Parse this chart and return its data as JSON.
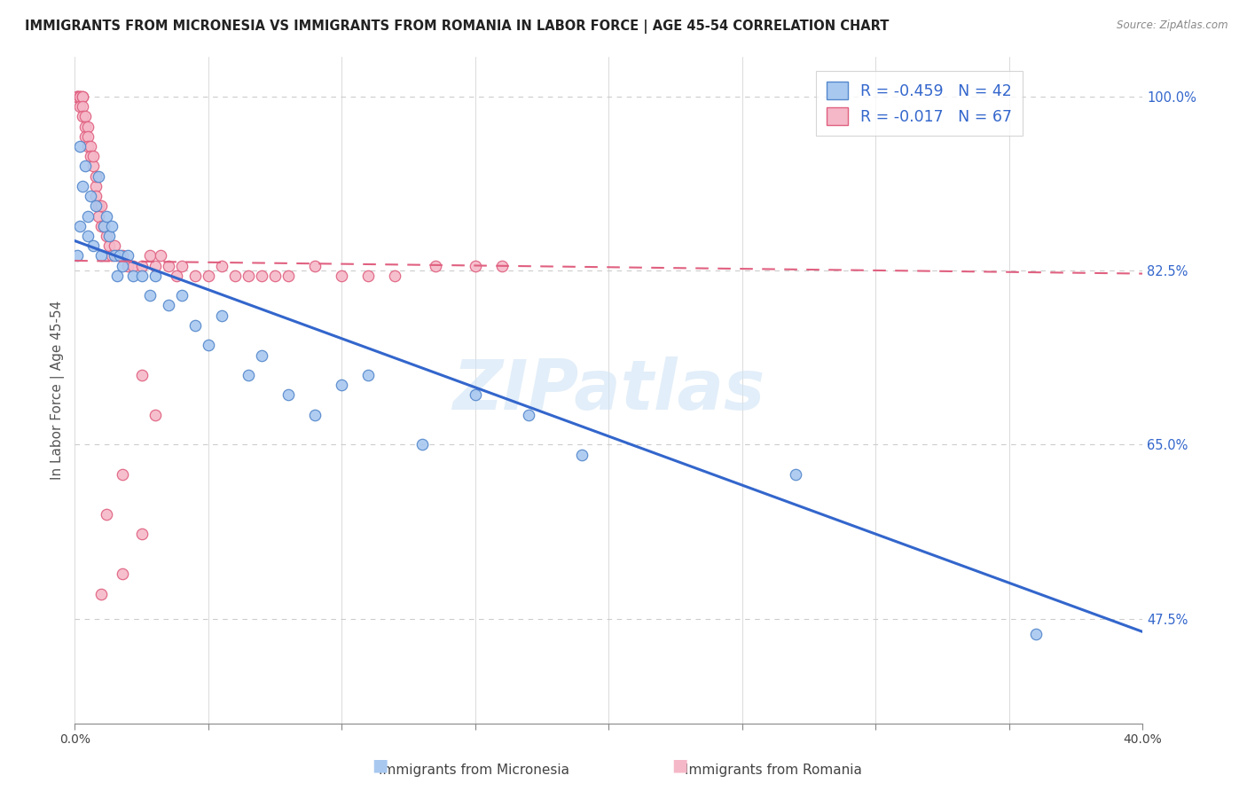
{
  "title": "IMMIGRANTS FROM MICRONESIA VS IMMIGRANTS FROM ROMANIA IN LABOR FORCE | AGE 45-54 CORRELATION CHART",
  "source": "Source: ZipAtlas.com",
  "ylabel": "In Labor Force | Age 45-54",
  "ytick_vals": [
    0.475,
    0.65,
    0.825,
    1.0
  ],
  "ytick_labels": [
    "47.5%",
    "65.0%",
    "82.5%",
    "100.0%"
  ],
  "xlim": [
    0.0,
    0.4
  ],
  "ylim": [
    0.37,
    1.04
  ],
  "micronesia_color": "#A8C8F0",
  "romania_color": "#F5B8C8",
  "micronesia_edge": "#5588CC",
  "romania_edge": "#E06080",
  "blue_line_color": "#3366CC",
  "pink_line_color": "#E06080",
  "legend_R_micronesia": "-0.459",
  "legend_N_micronesia": "42",
  "legend_R_romania": "-0.017",
  "legend_N_romania": "67",
  "legend_label_micronesia": "Immigrants from Micronesia",
  "legend_label_romania": "Immigrants from Romania",
  "watermark": "ZIPatlas",
  "background_color": "#FFFFFF",
  "grid_color": "#CCCCCC",
  "micronesia_x": [
    0.001,
    0.002,
    0.002,
    0.003,
    0.004,
    0.005,
    0.005,
    0.006,
    0.007,
    0.008,
    0.009,
    0.01,
    0.011,
    0.012,
    0.013,
    0.014,
    0.015,
    0.016,
    0.017,
    0.018,
    0.02,
    0.022,
    0.025,
    0.028,
    0.03,
    0.035,
    0.04,
    0.045,
    0.05,
    0.055,
    0.065,
    0.07,
    0.08,
    0.09,
    0.1,
    0.11,
    0.13,
    0.15,
    0.17,
    0.19,
    0.27,
    0.36
  ],
  "micronesia_y": [
    0.84,
    0.87,
    0.95,
    0.91,
    0.93,
    0.88,
    0.86,
    0.9,
    0.85,
    0.89,
    0.92,
    0.84,
    0.87,
    0.88,
    0.86,
    0.87,
    0.84,
    0.82,
    0.84,
    0.83,
    0.84,
    0.82,
    0.82,
    0.8,
    0.82,
    0.79,
    0.8,
    0.77,
    0.75,
    0.78,
    0.72,
    0.74,
    0.7,
    0.68,
    0.71,
    0.72,
    0.65,
    0.7,
    0.68,
    0.64,
    0.62,
    0.46
  ],
  "romania_x": [
    0.001,
    0.001,
    0.001,
    0.001,
    0.002,
    0.002,
    0.002,
    0.002,
    0.003,
    0.003,
    0.003,
    0.003,
    0.004,
    0.004,
    0.004,
    0.005,
    0.005,
    0.005,
    0.006,
    0.006,
    0.007,
    0.007,
    0.008,
    0.008,
    0.008,
    0.009,
    0.009,
    0.01,
    0.01,
    0.011,
    0.012,
    0.013,
    0.014,
    0.015,
    0.016,
    0.018,
    0.02,
    0.022,
    0.025,
    0.028,
    0.03,
    0.032,
    0.035,
    0.038,
    0.04,
    0.045,
    0.05,
    0.055,
    0.06,
    0.065,
    0.07,
    0.075,
    0.08,
    0.09,
    0.1,
    0.11,
    0.12,
    0.135,
    0.15,
    0.16,
    0.025,
    0.03,
    0.018,
    0.025,
    0.012,
    0.018,
    0.01
  ],
  "romania_y": [
    1.0,
    1.0,
    1.0,
    1.0,
    1.0,
    1.0,
    1.0,
    0.99,
    1.0,
    1.0,
    0.99,
    0.98,
    0.98,
    0.97,
    0.96,
    0.97,
    0.96,
    0.95,
    0.95,
    0.94,
    0.93,
    0.94,
    0.91,
    0.92,
    0.9,
    0.89,
    0.88,
    0.87,
    0.89,
    0.87,
    0.86,
    0.85,
    0.84,
    0.85,
    0.84,
    0.84,
    0.83,
    0.83,
    0.83,
    0.84,
    0.83,
    0.84,
    0.83,
    0.82,
    0.83,
    0.82,
    0.82,
    0.83,
    0.82,
    0.82,
    0.82,
    0.82,
    0.82,
    0.83,
    0.82,
    0.82,
    0.82,
    0.83,
    0.83,
    0.83,
    0.72,
    0.68,
    0.62,
    0.56,
    0.58,
    0.52,
    0.5
  ],
  "blue_line_x": [
    0.0,
    0.4
  ],
  "blue_line_y": [
    0.855,
    0.462
  ],
  "pink_line_x": [
    0.0,
    0.4
  ],
  "pink_line_y": [
    0.835,
    0.822
  ]
}
